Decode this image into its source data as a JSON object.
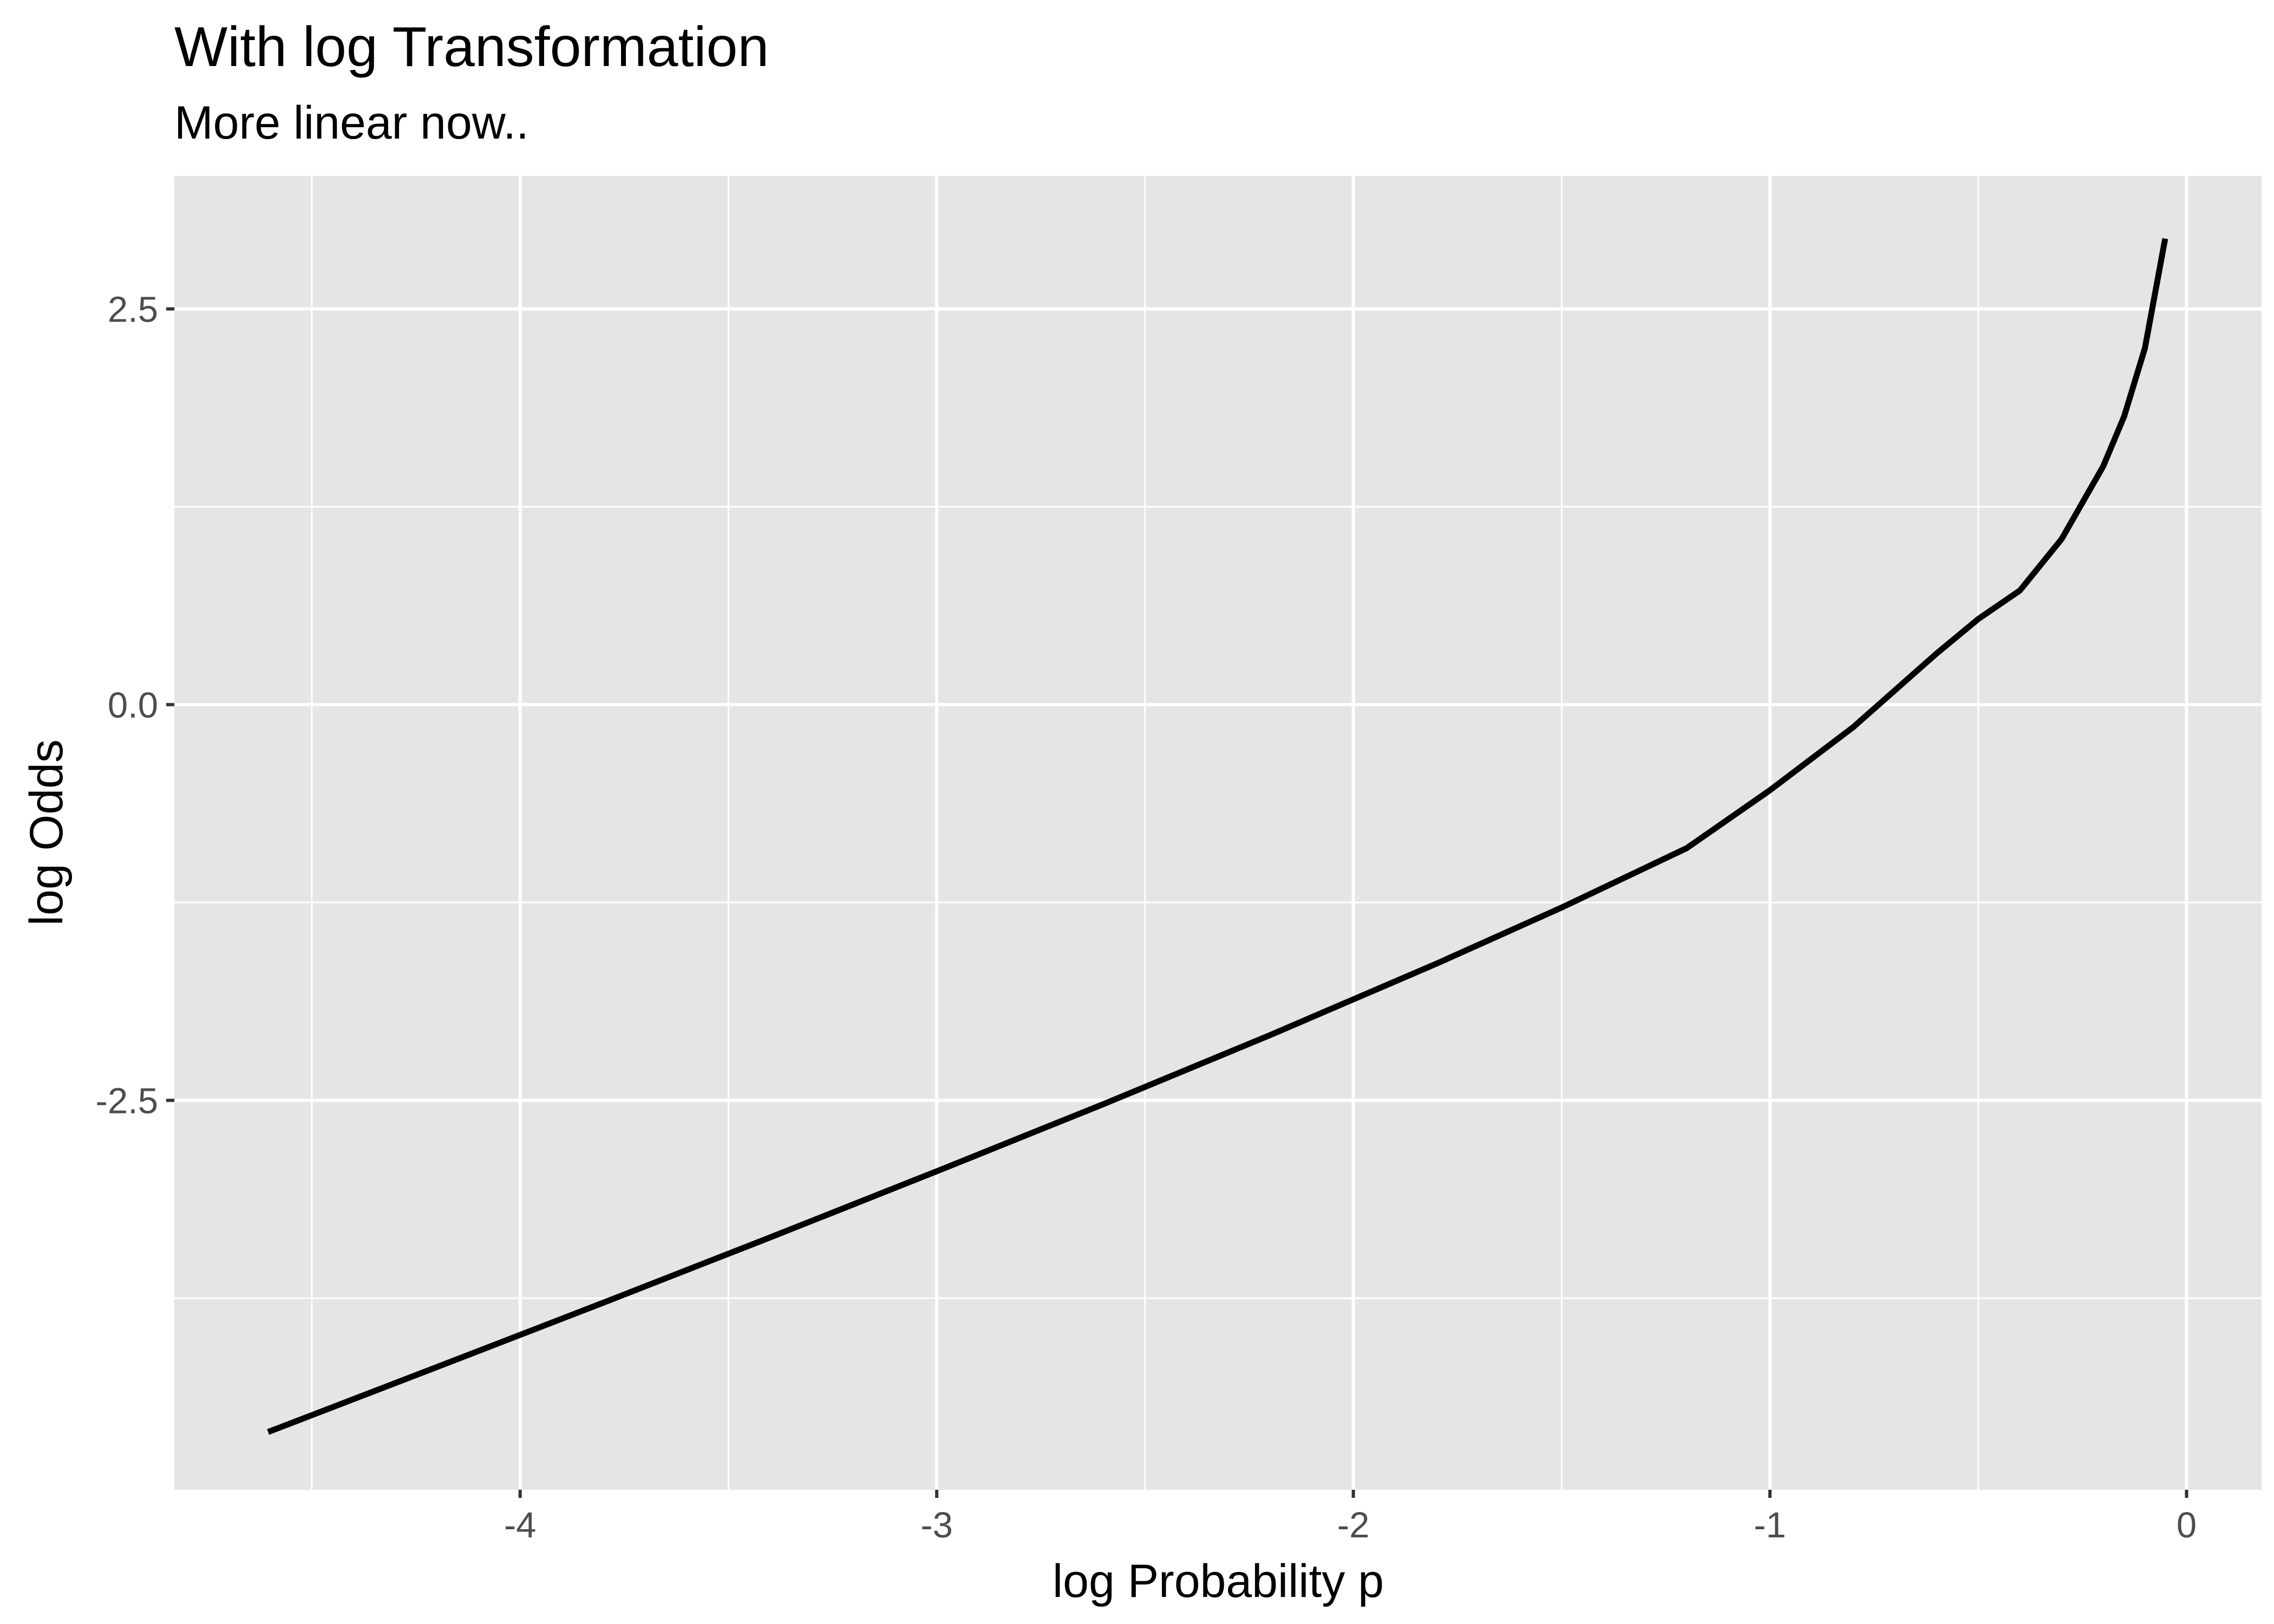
{
  "chart_data": {
    "type": "line",
    "title": "With log Transformation",
    "subtitle": "More linear now..",
    "xlabel": "log Probability p",
    "ylabel": "log Odds",
    "xlim": [
      -4.83,
      0.18
    ],
    "ylim": [
      -4.96,
      3.34
    ],
    "x_ticks": [
      -4,
      -3,
      -2,
      -1,
      0
    ],
    "x_tick_labels": [
      "-4",
      "-3",
      "-2",
      "-1",
      "0"
    ],
    "x_minor_ticks": [
      -4.5,
      -3.5,
      -2.5,
      -1.5,
      -0.5
    ],
    "y_ticks": [
      -2.5,
      0,
      2.5
    ],
    "y_tick_labels": [
      "-2.5",
      "0.0",
      "2.5"
    ],
    "y_minor_ticks": [
      -3.75,
      -1.25,
      1.25
    ],
    "grid": true,
    "series": [
      {
        "function": "log(p/(1-p)) for p from 0.01 to 0.95",
        "x": [
          -4.605,
          -4.2,
          -3.8,
          -3.4,
          -3.0,
          -2.6,
          -2.2,
          -1.8,
          -1.5,
          -1.2,
          -1.0,
          -0.8,
          -0.6,
          -0.5,
          -0.4,
          -0.3,
          -0.2,
          -0.15,
          -0.1,
          -0.0513
        ],
        "y": [
          -4.595,
          -4.185,
          -3.778,
          -3.366,
          -2.948,
          -2.524,
          -2.088,
          -1.636,
          -1.282,
          -0.907,
          -0.541,
          -0.142,
          0.323,
          0.541,
          0.721,
          1.046,
          1.506,
          1.82,
          2.252,
          2.944
        ]
      }
    ],
    "colors": {
      "panel_background": "#e5e5e5",
      "grid_major": "#ffffff",
      "line": "#000000",
      "tick_label": "#4d4d4d",
      "tick_mark": "#333333"
    }
  }
}
